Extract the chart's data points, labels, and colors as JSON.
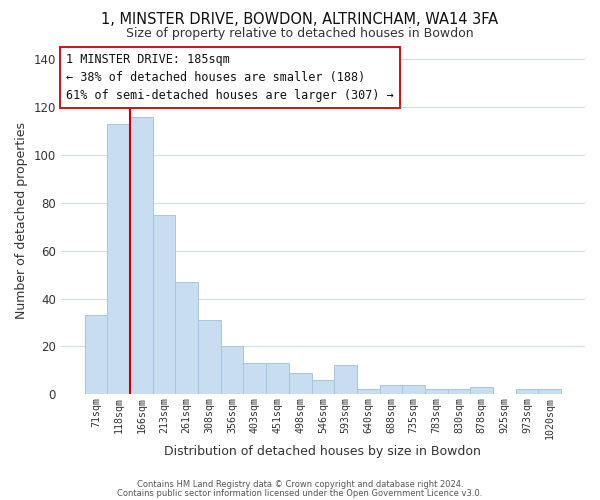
{
  "title1": "1, MINSTER DRIVE, BOWDON, ALTRINCHAM, WA14 3FA",
  "title2": "Size of property relative to detached houses in Bowdon",
  "xlabel": "Distribution of detached houses by size in Bowdon",
  "ylabel": "Number of detached properties",
  "bar_labels": [
    "71sqm",
    "118sqm",
    "166sqm",
    "213sqm",
    "261sqm",
    "308sqm",
    "356sqm",
    "403sqm",
    "451sqm",
    "498sqm",
    "546sqm",
    "593sqm",
    "640sqm",
    "688sqm",
    "735sqm",
    "783sqm",
    "830sqm",
    "878sqm",
    "925sqm",
    "973sqm",
    "1020sqm"
  ],
  "bar_values": [
    33,
    113,
    116,
    75,
    47,
    31,
    20,
    13,
    13,
    9,
    6,
    12,
    2,
    4,
    4,
    2,
    2,
    3,
    0,
    2,
    2
  ],
  "bar_color": "#c9ddf0",
  "bar_edge_color": "#a8c4e0",
  "highlight_bar_index": 2,
  "highlight_color": "#cc0000",
  "ylim_max": 145,
  "yticks": [
    0,
    20,
    40,
    60,
    80,
    100,
    120,
    140
  ],
  "annotation_line0": "1 MINSTER DRIVE: 185sqm",
  "annotation_line1": "← 38% of detached houses are smaller (188)",
  "annotation_line2": "61% of semi-detached houses are larger (307) →",
  "annotation_box_facecolor": "#ffffff",
  "annotation_box_edgecolor": "#cc0000",
  "footer1": "Contains HM Land Registry data © Crown copyright and database right 2024.",
  "footer2": "Contains public sector information licensed under the Open Government Licence v3.0.",
  "background_color": "#ffffff",
  "grid_color": "#d0dde8"
}
